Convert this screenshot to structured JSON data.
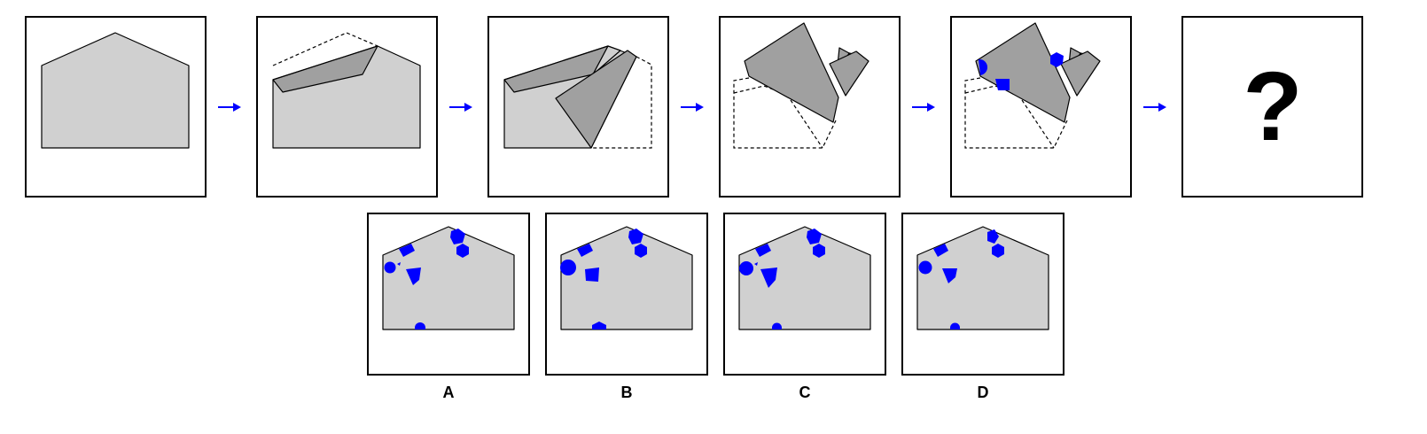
{
  "question_mark": "?",
  "options": [
    {
      "label": "A"
    },
    {
      "label": "B"
    },
    {
      "label": "C"
    },
    {
      "label": "D"
    }
  ],
  "colors": {
    "mark": "#0000ff",
    "paper": "#d0d0d0",
    "flap": "#a0a0a0",
    "arrow": "#0000ff"
  }
}
